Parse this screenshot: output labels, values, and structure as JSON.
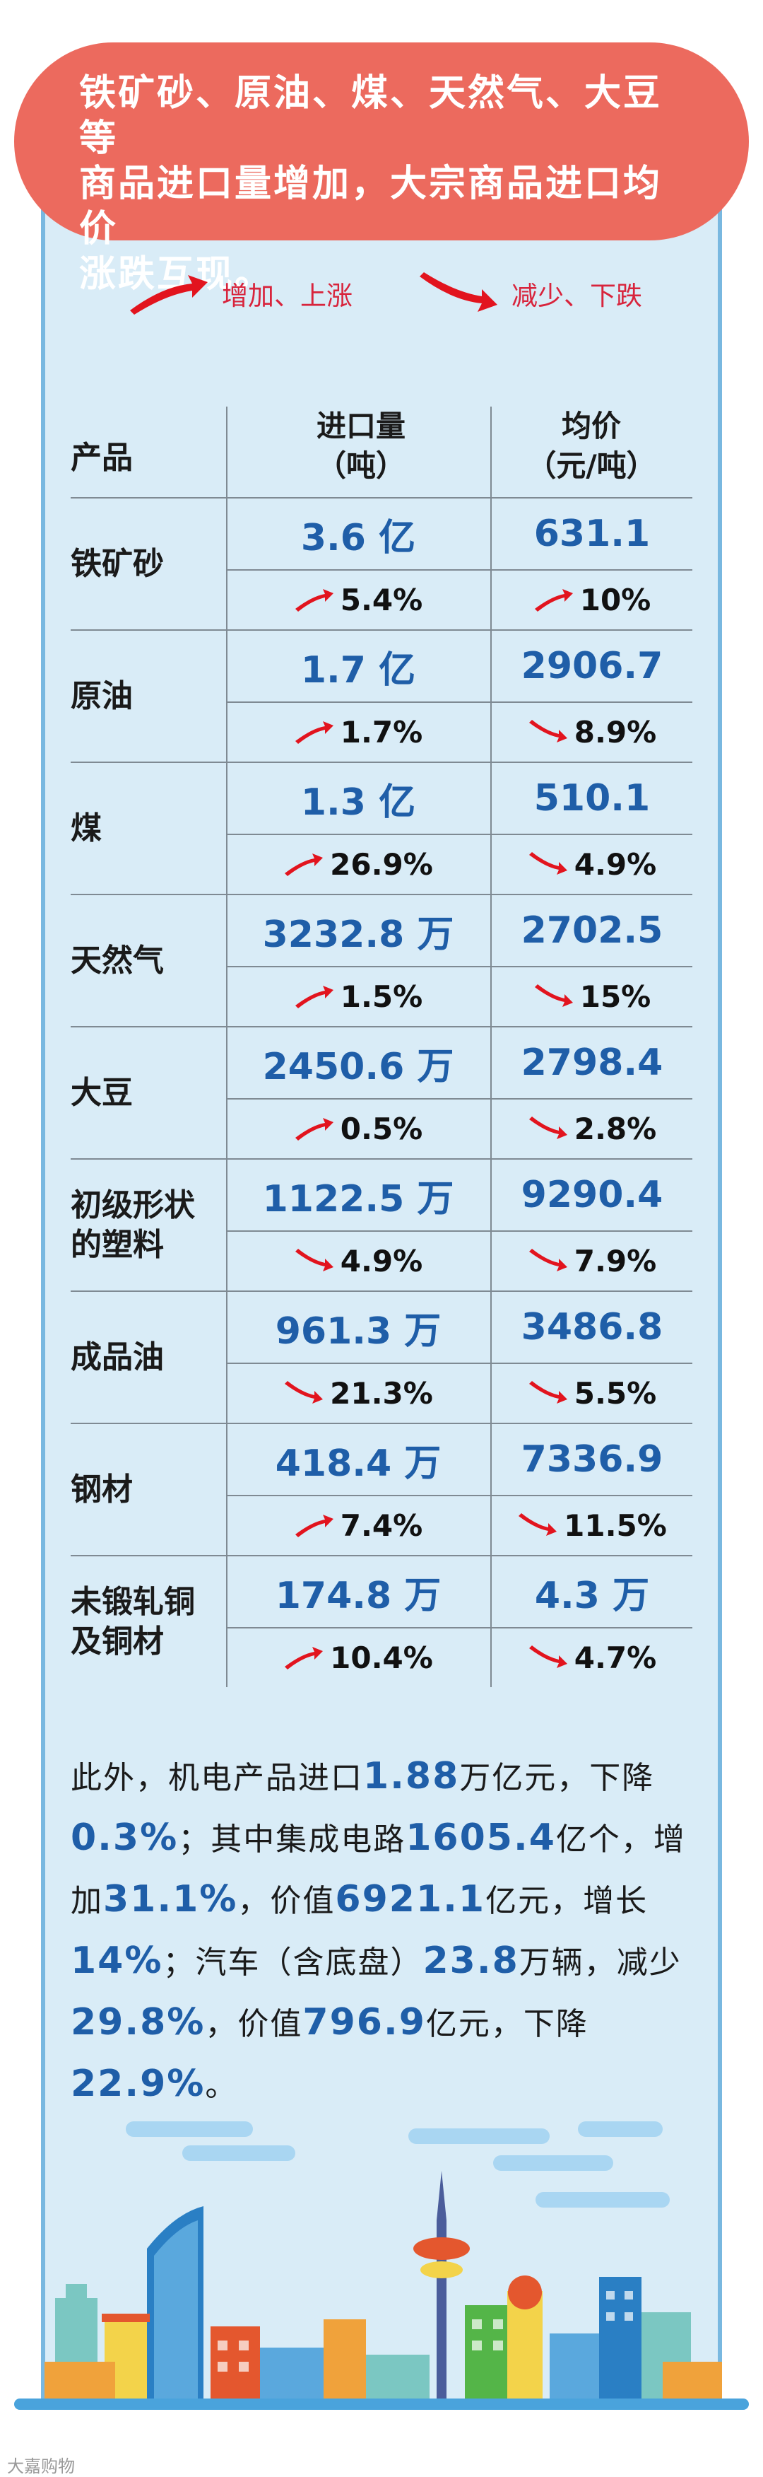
{
  "banner": {
    "lines": [
      "铁矿砂、原油、煤、天然气、大豆等",
      "商品进口量增加，大宗商品进口均价",
      "涨跌互现。"
    ]
  },
  "legend": {
    "up_label": "增加、上涨",
    "down_label": "减少、下跌"
  },
  "colors": {
    "up": "#e2141e",
    "down": "#e2141e",
    "value_blue": "#1f5ea8",
    "banner": "#ec6a5e",
    "panel": "#d9ecf7"
  },
  "table": {
    "headers": {
      "product": "产品",
      "volume": [
        "进口量",
        "（吨）"
      ],
      "price": [
        "均价",
        "（元/吨）"
      ]
    },
    "rows": [
      {
        "name": "铁矿砂",
        "volume": "3.6 亿",
        "volume_change": "5.4%",
        "volume_dir": "up",
        "price": "631.1",
        "price_change": "10%",
        "price_dir": "up"
      },
      {
        "name": "原油",
        "volume": "1.7 亿",
        "volume_change": "1.7%",
        "volume_dir": "up",
        "price": "2906.7",
        "price_change": "8.9%",
        "price_dir": "down"
      },
      {
        "name": "煤",
        "volume": "1.3 亿",
        "volume_change": "26.9%",
        "volume_dir": "up",
        "price": "510.1",
        "price_change": "4.9%",
        "price_dir": "down"
      },
      {
        "name": "天然气",
        "volume": "3232.8 万",
        "volume_change": "1.5%",
        "volume_dir": "up",
        "price": "2702.5",
        "price_change": "15%",
        "price_dir": "down"
      },
      {
        "name": "大豆",
        "volume": "2450.6 万",
        "volume_change": "0.5%",
        "volume_dir": "up",
        "price": "2798.4",
        "price_change": "2.8%",
        "price_dir": "down"
      },
      {
        "name": "初级形状的塑料",
        "volume": "1122.5 万",
        "volume_change": "4.9%",
        "volume_dir": "down",
        "price": "9290.4",
        "price_change": "7.9%",
        "price_dir": "down"
      },
      {
        "name": "成品油",
        "volume": "961.3 万",
        "volume_change": "21.3%",
        "volume_dir": "down",
        "price": "3486.8",
        "price_change": "5.5%",
        "price_dir": "down"
      },
      {
        "name": "钢材",
        "volume": "418.4 万",
        "volume_change": "7.4%",
        "volume_dir": "up",
        "price": "7336.9",
        "price_change": "11.5%",
        "price_dir": "down"
      },
      {
        "name": "未锻轧铜及铜材",
        "volume": "174.8 万",
        "volume_change": "10.4%",
        "volume_dir": "up",
        "price": "4.3 万",
        "price_change": "4.7%",
        "price_dir": "down"
      }
    ]
  },
  "paragraph": [
    {
      "t": "此外，机电产品进口"
    },
    {
      "b": "1.88"
    },
    {
      "t": "万亿元，下降"
    },
    {
      "b": "0.3%"
    },
    {
      "t": "；其中集成电路"
    },
    {
      "b": "1605.4"
    },
    {
      "t": "亿个，"
    },
    {
      "t": "增加"
    },
    {
      "b": "31.1%"
    },
    {
      "t": "，价值"
    },
    {
      "b": "6921.1"
    },
    {
      "t": "亿元，增"
    },
    {
      "t": "长"
    },
    {
      "b": "14%"
    },
    {
      "t": "；汽车（含底盘）"
    },
    {
      "b": "23.8"
    },
    {
      "t": "万辆，"
    },
    {
      "t": "减少"
    },
    {
      "b": "29.8%"
    },
    {
      "t": "，价值"
    },
    {
      "b": "796.9"
    },
    {
      "t": "亿元，下降"
    },
    {
      "b": "22.9%"
    },
    {
      "t": "。"
    }
  ],
  "watermark": "大嘉购物"
}
